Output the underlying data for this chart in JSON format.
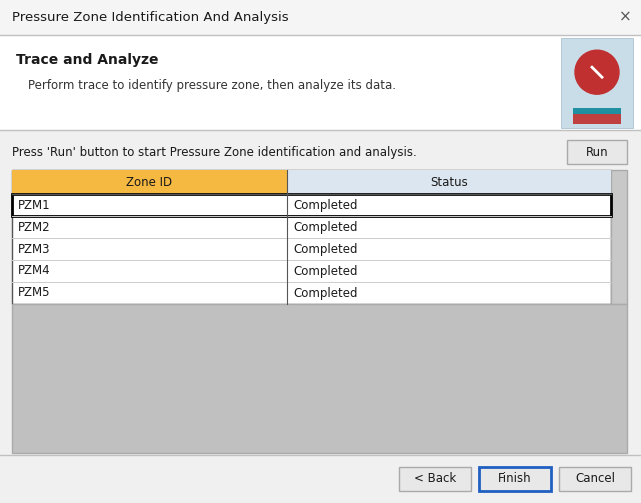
{
  "title": "Pressure Zone Identification And Analysis",
  "section_title": "Trace and Analyze",
  "section_subtitle": "Perform trace to identify pressure zone, then analyze its data.",
  "run_instruction": "Press 'Run' button to start Pressure Zone identification and analysis.",
  "run_button": "Run",
  "col_headers": [
    "Zone ID",
    "Status"
  ],
  "rows": [
    [
      "PZM1",
      "Completed"
    ],
    [
      "PZM2",
      "Completed"
    ],
    [
      "PZM3",
      "Completed"
    ],
    [
      "PZM4",
      "Completed"
    ],
    [
      "PZM5",
      "Completed"
    ]
  ],
  "buttons": [
    "< Back",
    "Finish",
    "Cancel"
  ],
  "bg_color": "#f0f0f0",
  "white_bg": "#ffffff",
  "orange_header": "#f5b942",
  "blue_header": "#dce6f0",
  "gray_area": "#c0c0c0",
  "border_color": "#aaaaaa",
  "dark_border": "#555555",
  "finish_border": "#2060c0",
  "text_color": "#1a1a1a",
  "icon_bg": "#c8dde8",
  "run_btn_bg": "#e8e8e8",
  "btn_bg": "#e8e8e8",
  "separator_color": "#c0c0c0",
  "scrollbar_color": "#c8c8c8"
}
